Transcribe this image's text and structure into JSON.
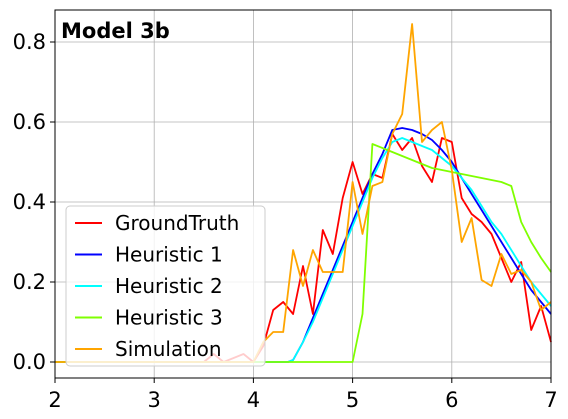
{
  "chart_data": {
    "type": "line",
    "title": "Model 3b",
    "xlabel": "",
    "ylabel": "",
    "xlim": [
      2,
      7
    ],
    "ylim": [
      -0.04,
      0.88
    ],
    "xticks": [
      2,
      3,
      4,
      5,
      6,
      7
    ],
    "yticks": [
      0.0,
      0.2,
      0.4,
      0.6,
      0.8
    ],
    "xtick_labels": [
      "2",
      "3",
      "4",
      "5",
      "6",
      "7"
    ],
    "ytick_labels": [
      "0.0",
      "0.2",
      "0.4",
      "0.6",
      "0.8"
    ],
    "grid": true,
    "legend_position": "lower-left",
    "series": [
      {
        "name": "GroundTruth",
        "color": "#ff0000",
        "x": [
          2.0,
          3.4,
          3.5,
          3.6,
          3.7,
          3.8,
          3.9,
          4.0,
          4.1,
          4.2,
          4.3,
          4.4,
          4.5,
          4.6,
          4.7,
          4.8,
          4.9,
          5.0,
          5.1,
          5.2,
          5.3,
          5.4,
          5.5,
          5.6,
          5.7,
          5.8,
          5.9,
          6.0,
          6.1,
          6.2,
          6.3,
          6.4,
          6.5,
          6.6,
          6.7,
          6.8,
          6.9,
          7.0
        ],
        "y": [
          0.0,
          0.0,
          0.0,
          0.02,
          0.0,
          0.01,
          0.02,
          0.0,
          0.04,
          0.13,
          0.15,
          0.12,
          0.24,
          0.12,
          0.33,
          0.27,
          0.41,
          0.5,
          0.42,
          0.47,
          0.46,
          0.57,
          0.53,
          0.56,
          0.49,
          0.45,
          0.56,
          0.55,
          0.41,
          0.37,
          0.35,
          0.32,
          0.26,
          0.2,
          0.25,
          0.08,
          0.14,
          0.05
        ]
      },
      {
        "name": "Heuristic 1",
        "color": "#0000ff",
        "x": [
          2.0,
          4.35,
          4.4,
          4.5,
          4.6,
          4.7,
          4.8,
          4.9,
          5.0,
          5.1,
          5.2,
          5.3,
          5.4,
          5.5,
          5.6,
          5.7,
          5.8,
          5.9,
          6.0,
          6.1,
          6.2,
          6.3,
          6.4,
          6.5,
          6.6,
          6.7,
          6.8,
          6.9,
          7.0
        ],
        "y": [
          0.0,
          0.0,
          0.005,
          0.05,
          0.11,
          0.17,
          0.23,
          0.29,
          0.35,
          0.41,
          0.47,
          0.52,
          0.58,
          0.585,
          0.58,
          0.57,
          0.555,
          0.53,
          0.5,
          0.46,
          0.42,
          0.38,
          0.34,
          0.3,
          0.26,
          0.22,
          0.18,
          0.15,
          0.12
        ]
      },
      {
        "name": "Heuristic 2",
        "color": "#00ffff",
        "x": [
          2.0,
          4.35,
          4.4,
          4.5,
          4.6,
          4.7,
          4.8,
          4.9,
          5.0,
          5.1,
          5.2,
          5.3,
          5.4,
          5.5,
          5.6,
          5.7,
          5.8,
          5.9,
          6.0,
          6.1,
          6.2,
          6.3,
          6.4,
          6.5,
          6.6,
          6.7,
          6.8,
          6.9,
          7.0
        ],
        "y": [
          0.0,
          0.0,
          0.005,
          0.05,
          0.1,
          0.16,
          0.22,
          0.28,
          0.34,
          0.4,
          0.46,
          0.51,
          0.55,
          0.56,
          0.55,
          0.54,
          0.53,
          0.51,
          0.49,
          0.46,
          0.43,
          0.39,
          0.35,
          0.32,
          0.28,
          0.24,
          0.2,
          0.17,
          0.14
        ]
      },
      {
        "name": "Heuristic 3",
        "color": "#7fff00",
        "x": [
          2.0,
          5.0,
          5.1,
          5.2,
          5.3,
          5.4,
          5.5,
          5.6,
          5.7,
          5.8,
          5.9,
          6.0,
          6.1,
          6.2,
          6.3,
          6.4,
          6.5,
          6.6,
          6.7,
          6.8,
          6.9,
          7.0
        ],
        "y": [
          0.0,
          0.0,
          0.12,
          0.545,
          0.535,
          0.525,
          0.515,
          0.505,
          0.495,
          0.485,
          0.48,
          0.475,
          0.47,
          0.465,
          0.46,
          0.455,
          0.45,
          0.44,
          0.35,
          0.3,
          0.26,
          0.225
        ]
      },
      {
        "name": "Simulation",
        "color": "#ffa500",
        "x": [
          2.0,
          4.0,
          4.1,
          4.2,
          4.3,
          4.4,
          4.5,
          4.6,
          4.7,
          4.8,
          4.9,
          5.0,
          5.1,
          5.2,
          5.3,
          5.4,
          5.5,
          5.6,
          5.7,
          5.8,
          5.9,
          6.0,
          6.1,
          6.2,
          6.3,
          6.4,
          6.5,
          6.6,
          6.7,
          6.8,
          6.9,
          7.0
        ],
        "y": [
          0.0,
          0.0,
          0.05,
          0.075,
          0.075,
          0.28,
          0.19,
          0.28,
          0.225,
          0.225,
          0.225,
          0.45,
          0.32,
          0.44,
          0.45,
          0.57,
          0.62,
          0.845,
          0.55,
          0.58,
          0.6,
          0.48,
          0.3,
          0.36,
          0.205,
          0.19,
          0.27,
          0.22,
          0.23,
          0.2,
          0.13,
          0.15
        ]
      }
    ]
  }
}
